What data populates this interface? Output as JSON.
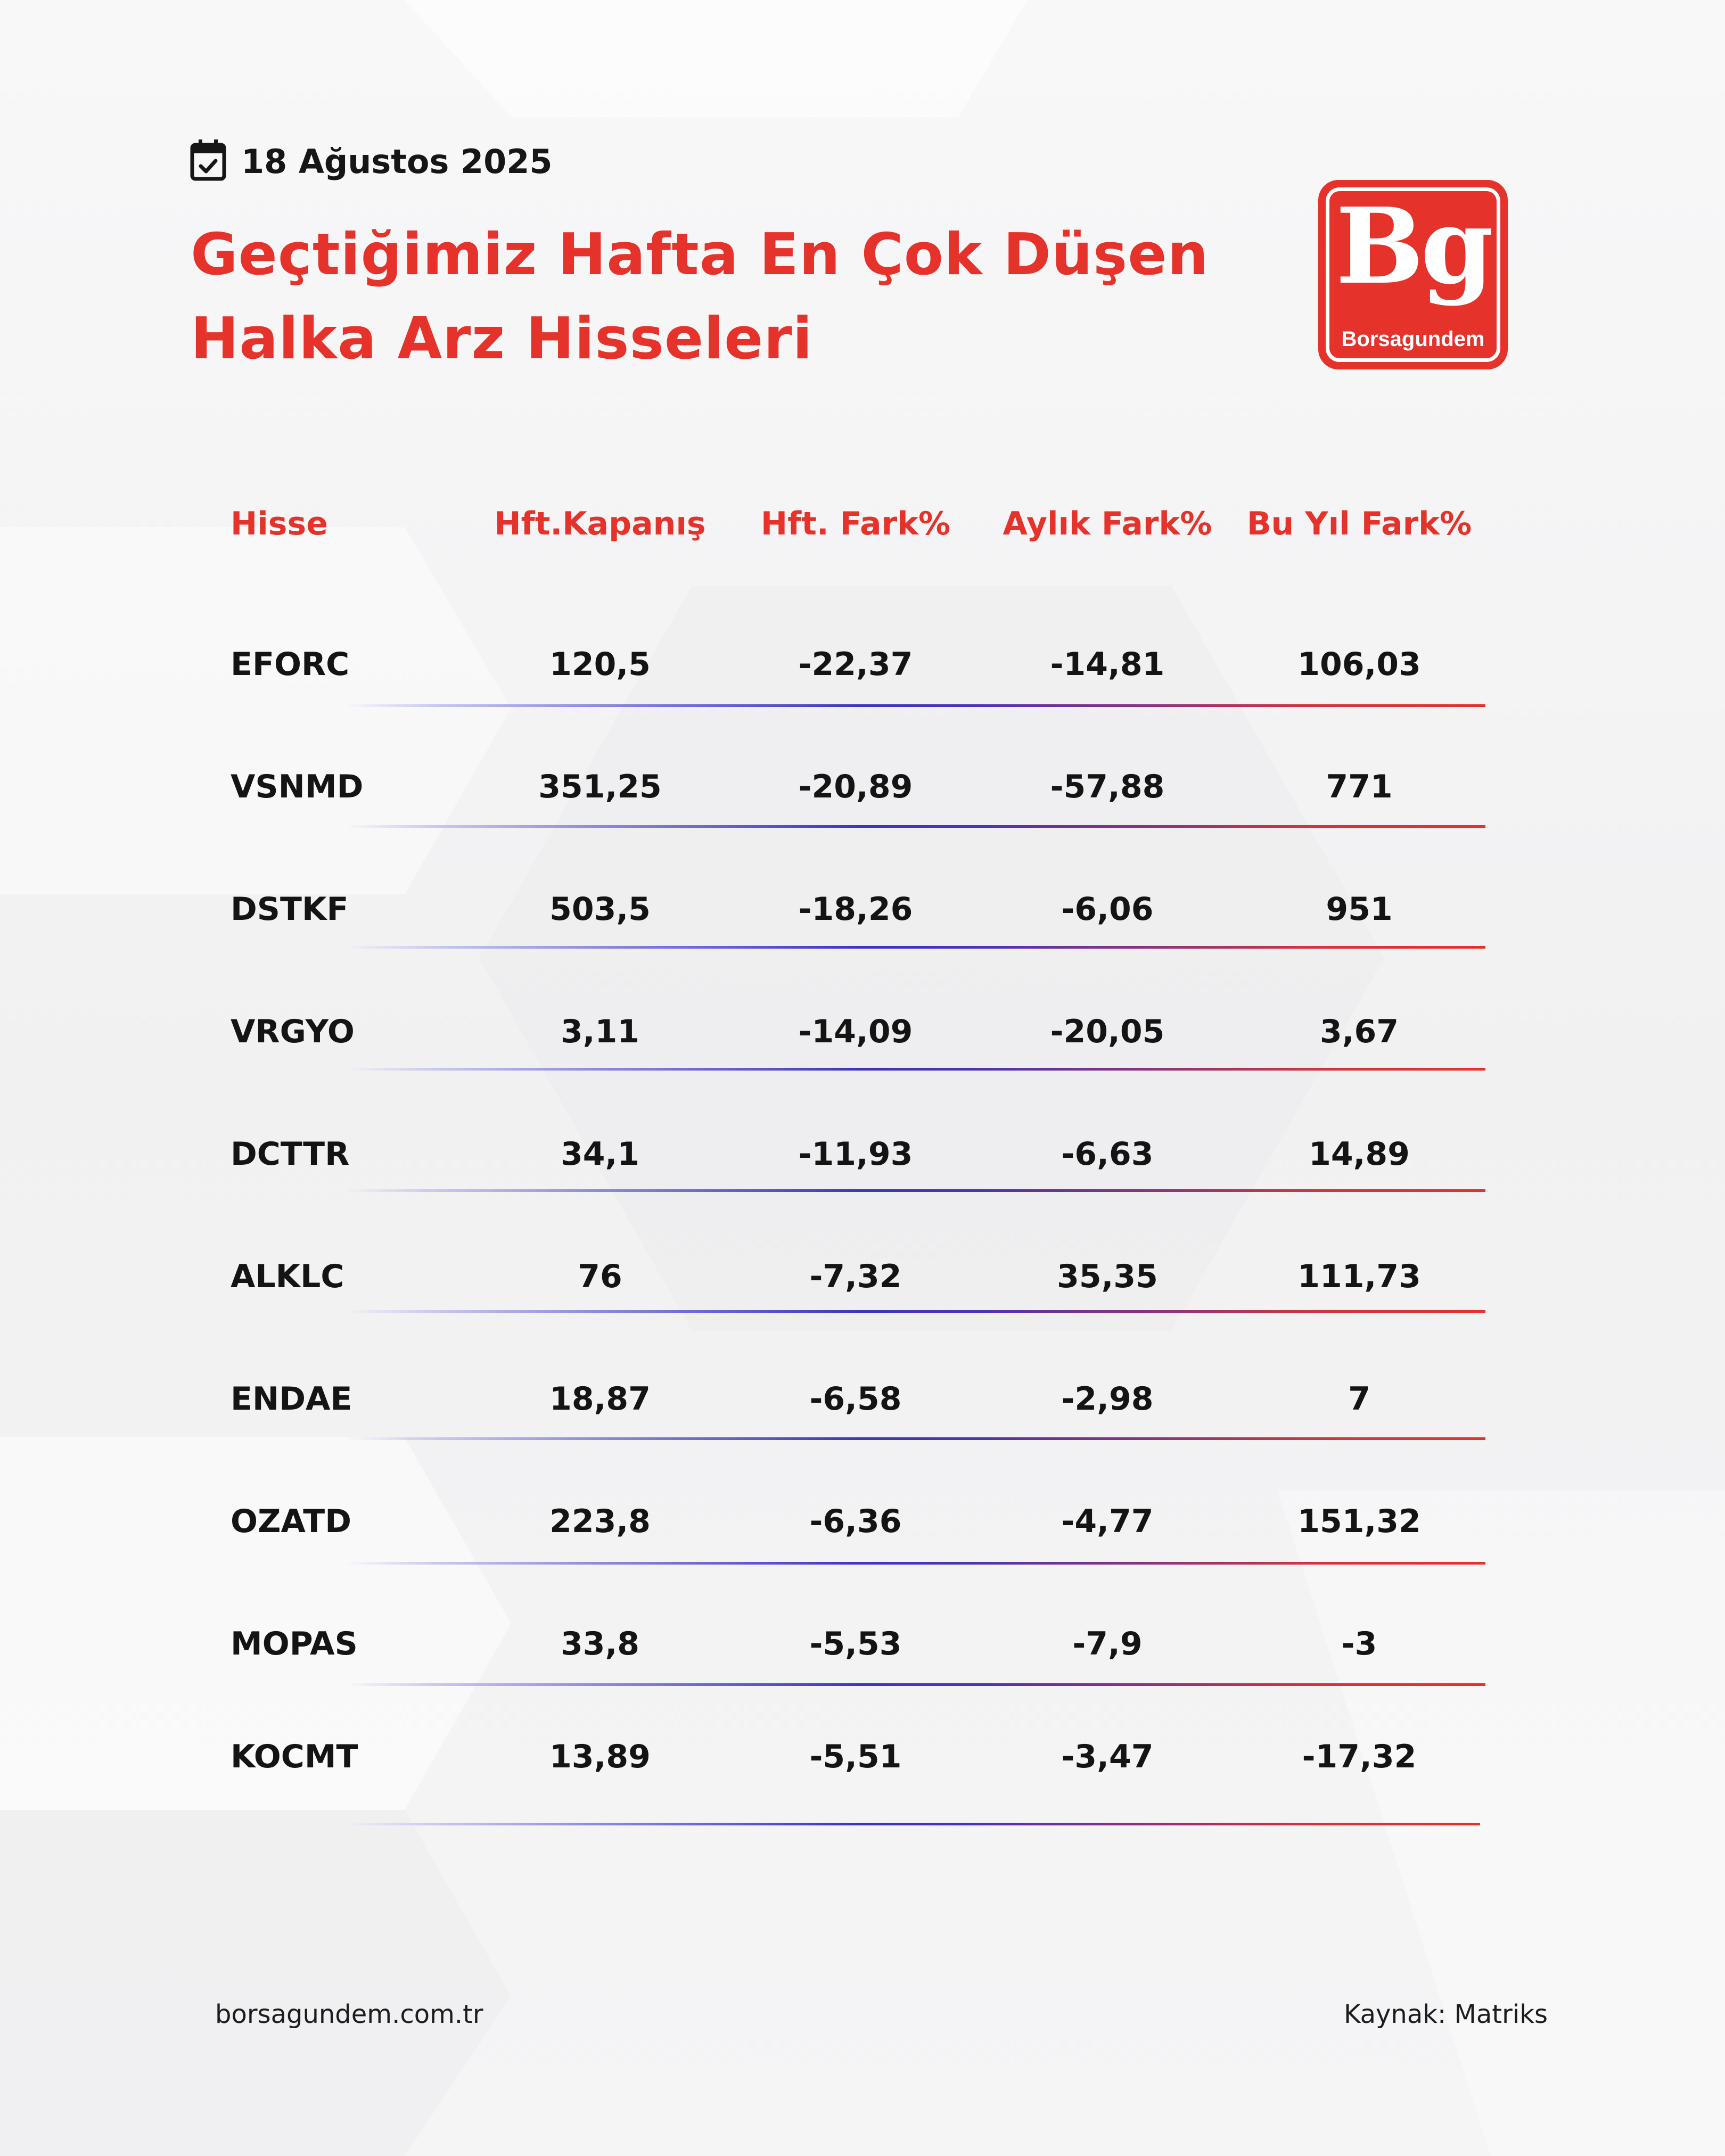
{
  "header": {
    "date": "18 Ağustos 2025",
    "title_line1": "Geçtiğimiz Hafta En Çok Düşen",
    "title_line2": "Halka Arz Hisseleri"
  },
  "logo": {
    "mark": "Bg",
    "word": "Borsagundem"
  },
  "colors": {
    "accent": "#e5322a",
    "text": "#141414"
  },
  "table": {
    "columns": [
      "Hisse",
      "Hft.Kapanış",
      "Hft. Fark%",
      "Aylık Fark%",
      "Bu Yıl Fark%"
    ],
    "rows": [
      {
        "hisse": "EFORC",
        "kapanis": "120,5",
        "hft_fark": "-22,37",
        "aylik_fark": "-14,81",
        "yil_fark": "106,03"
      },
      {
        "hisse": "VSNMD",
        "kapanis": "351,25",
        "hft_fark": "-20,89",
        "aylik_fark": "-57,88",
        "yil_fark": "771"
      },
      {
        "hisse": "DSTKF",
        "kapanis": "503,5",
        "hft_fark": "-18,26",
        "aylik_fark": "-6,06",
        "yil_fark": "951"
      },
      {
        "hisse": "VRGYO",
        "kapanis": "3,11",
        "hft_fark": "-14,09",
        "aylik_fark": "-20,05",
        "yil_fark": "3,67"
      },
      {
        "hisse": "DCTTR",
        "kapanis": "34,1",
        "hft_fark": "-11,93",
        "aylik_fark": "-6,63",
        "yil_fark": "14,89"
      },
      {
        "hisse": "ALKLC",
        "kapanis": "76",
        "hft_fark": "-7,32",
        "aylik_fark": "35,35",
        "yil_fark": "111,73"
      },
      {
        "hisse": "ENDAE",
        "kapanis": "18,87",
        "hft_fark": "-6,58",
        "aylik_fark": "-2,98",
        "yil_fark": "7"
      },
      {
        "hisse": "OZATD",
        "kapanis": "223,8",
        "hft_fark": "-6,36",
        "aylik_fark": "-4,77",
        "yil_fark": "151,32"
      },
      {
        "hisse": "MOPAS",
        "kapanis": "33,8",
        "hft_fark": "-5,53",
        "aylik_fark": "-7,9",
        "yil_fark": "-3"
      },
      {
        "hisse": "KOCMT",
        "kapanis": "13,89",
        "hft_fark": "-5,51",
        "aylik_fark": "-3,47",
        "yil_fark": "-17,32"
      }
    ]
  },
  "footer": {
    "website": "borsagundem.com.tr",
    "source": "Kaynak: Matriks"
  }
}
